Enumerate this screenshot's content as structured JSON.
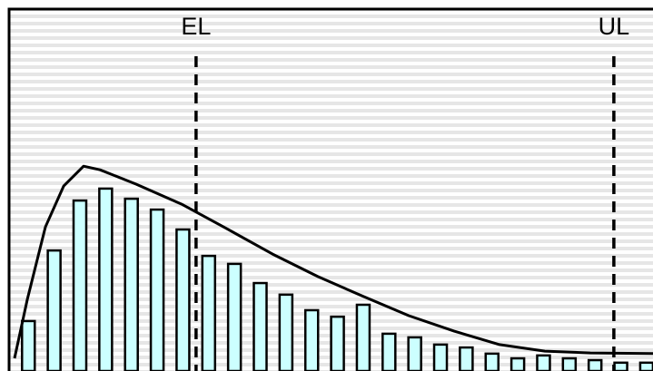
{
  "chart_data": {
    "type": "bar",
    "xlim": [
      0.25,
      25.25
    ],
    "ylim": [
      0,
      100
    ],
    "x": [
      1,
      2,
      3,
      4,
      5,
      6,
      7,
      8,
      9,
      10,
      11,
      12,
      13,
      14,
      15,
      16,
      17,
      18,
      19,
      20,
      21,
      22,
      23,
      24,
      25
    ],
    "series": [
      {
        "color": "#ccffff",
        "values": [
          13.8,
          33.3,
          47.1,
          50.4,
          47.6,
          44.6,
          39.1,
          31.8,
          29.6,
          24.3,
          21.1,
          16.8,
          15.0,
          18.3,
          10.3,
          9.3,
          7.3,
          6.5,
          4.8,
          3.5,
          4.3,
          3.5,
          3.0,
          2.3,
          2.3
        ]
      }
    ],
    "curve": {
      "color": "#000000",
      "x": [
        0.46,
        0.96,
        1.66,
        2.37,
        3.14,
        3.78,
        5.19,
        6.95,
        8.71,
        10.48,
        12.24,
        14.0,
        15.77,
        17.53,
        19.29,
        21.05,
        22.82,
        25.25
      ],
      "values": [
        3.5,
        19.8,
        39.8,
        51.1,
        56.6,
        55.6,
        51.6,
        46.1,
        39.3,
        32.3,
        26.1,
        20.6,
        15.3,
        11.0,
        7.3,
        5.5,
        5.0,
        4.8
      ]
    },
    "annotations": [
      {
        "label": "EL",
        "x": 7.51
      },
      {
        "label": "UL",
        "x": 23.73
      }
    ]
  }
}
